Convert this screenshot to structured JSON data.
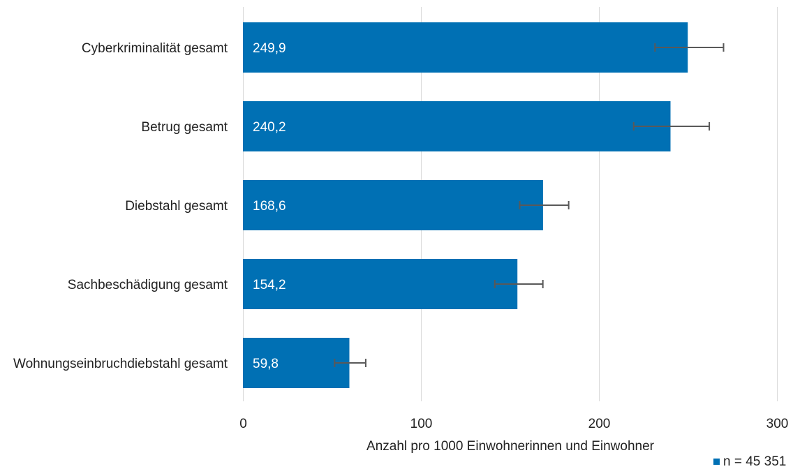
{
  "chart_data": {
    "type": "bar",
    "orientation": "horizontal",
    "categories": [
      "Cyberkriminalität gesamt",
      "Betrug gesamt",
      "Diebstahl gesamt",
      "Sachbeschädigung gesamt",
      "Wohnungseinbruchdiebstahl gesamt"
    ],
    "values": [
      249.9,
      240.2,
      168.6,
      154.2,
      59.8
    ],
    "value_labels": [
      "249,9",
      "240,2",
      "168,6",
      "154,2",
      "59,8"
    ],
    "error_bars": [
      {
        "low": 231.5,
        "high": 270.0
      },
      {
        "low": 219.5,
        "high": 262.0
      },
      {
        "low": 155.5,
        "high": 183.0
      },
      {
        "low": 141.5,
        "high": 168.5
      },
      {
        "low": 51.5,
        "high": 69.0
      }
    ],
    "xlim": [
      0,
      300
    ],
    "x_ticks": [
      0,
      100,
      200,
      300
    ],
    "x_tick_labels": [
      "0",
      "100",
      "200",
      "300"
    ],
    "xlabel": "Anzahl pro 1000 Einwohnerinnen und Einwohner",
    "ylabel": "",
    "title": "",
    "grid": "vertical",
    "legend": {
      "position": "bottom-right",
      "entries": [
        "n = 45 351"
      ]
    },
    "colors": {
      "bar": "#0070b4",
      "error_bar": "#595959",
      "grid": "#d9d9d9"
    }
  }
}
